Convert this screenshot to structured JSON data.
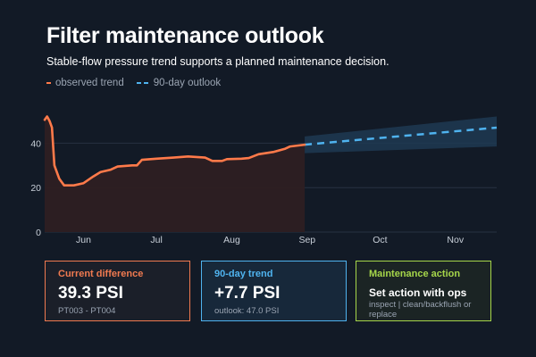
{
  "header": {
    "title": "Filter maintenance outlook",
    "subtitle": "Stable-flow pressure trend supports a planned maintenance decision."
  },
  "legend": {
    "observed_label": "observed trend",
    "outlook_label": "90-day outlook"
  },
  "colors": {
    "observed": "#ff7a4a",
    "outlook": "#4fb3ef",
    "band": "#1f3a52",
    "fill": "#2e1f22",
    "grid": "#273142"
  },
  "chart_data": {
    "type": "line",
    "title": "Filter maintenance outlook",
    "subtitle": "Stable-flow pressure trend supports a planned maintenance decision.",
    "xlabel": "",
    "ylabel": "",
    "x_tick_labels": [
      "Jun",
      "Jul",
      "Aug",
      "Sep",
      "Oct",
      "Nov"
    ],
    "x_tick_dates": [
      "2024-06-08",
      "2024-07-08",
      "2024-08-08",
      "2024-09-08",
      "2024-10-08",
      "2024-11-08"
    ],
    "xlim": [
      "2024-05-23",
      "2024-11-25"
    ],
    "y_ticks": [
      0,
      20,
      40
    ],
    "ylim": [
      0,
      53
    ],
    "grid": true,
    "legend_position": "top-left",
    "series": [
      {
        "name": "observed trend",
        "style": "solid",
        "points": [
          [
            "2024-05-23",
            50.5
          ],
          [
            "2024-05-24",
            52
          ],
          [
            "2024-05-25",
            50
          ],
          [
            "2024-05-26",
            47
          ],
          [
            "2024-05-27",
            30
          ],
          [
            "2024-05-29",
            24
          ],
          [
            "2024-05-31",
            21
          ],
          [
            "2024-06-04",
            21
          ],
          [
            "2024-06-08",
            22
          ],
          [
            "2024-06-12",
            25
          ],
          [
            "2024-06-15",
            27
          ],
          [
            "2024-06-19",
            28
          ],
          [
            "2024-06-22",
            29.5
          ],
          [
            "2024-06-28",
            30
          ],
          [
            "2024-06-30",
            30
          ],
          [
            "2024-07-02",
            32.5
          ],
          [
            "2024-07-08",
            33
          ],
          [
            "2024-07-15",
            33.5
          ],
          [
            "2024-07-21",
            34
          ],
          [
            "2024-07-28",
            33.5
          ],
          [
            "2024-07-31",
            32
          ],
          [
            "2024-08-04",
            32
          ],
          [
            "2024-08-06",
            32.8
          ],
          [
            "2024-08-12",
            33
          ],
          [
            "2024-08-15",
            33.3
          ],
          [
            "2024-08-19",
            35
          ],
          [
            "2024-08-25",
            36
          ],
          [
            "2024-08-30",
            37.5
          ],
          [
            "2024-09-01",
            38.5
          ],
          [
            "2024-09-07",
            39.3
          ]
        ]
      },
      {
        "name": "90-day outlook",
        "style": "dashed",
        "points": [
          [
            "2024-09-07",
            39.3
          ],
          [
            "2024-11-25",
            47.0
          ]
        ],
        "band_lower": [
          35.5,
          38.5
        ],
        "band_upper": [
          43.0,
          52.0
        ]
      }
    ]
  },
  "cards": [
    {
      "title": "Current difference",
      "value": "39.3 PSI",
      "sub": "PT003 - PT004"
    },
    {
      "title": "90-day trend",
      "value": "+7.7 PSI",
      "sub": "outlook: 47.0 PSI"
    },
    {
      "title": "Maintenance action",
      "value": "Set action with ops",
      "sub": "inspect | clean/backflush or replace"
    }
  ]
}
